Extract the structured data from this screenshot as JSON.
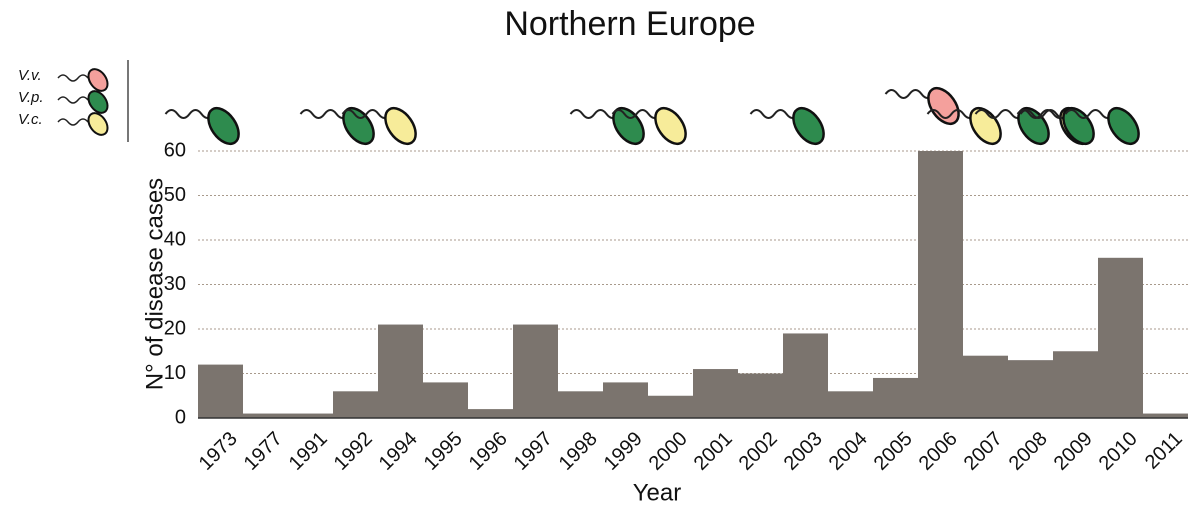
{
  "chart_data": {
    "type": "bar",
    "title": "Northern Europe",
    "xlabel": "Year",
    "ylabel": "N° of disease cases",
    "categories": [
      "1973",
      "1977",
      "1991",
      "1992",
      "1994",
      "1995",
      "1996",
      "1997",
      "1998",
      "1999",
      "2000",
      "2001",
      "2002",
      "2003",
      "2004",
      "2005",
      "2006",
      "2007",
      "2008",
      "2009",
      "2010",
      "2011"
    ],
    "values": [
      12,
      1,
      1,
      6,
      21,
      8,
      2,
      21,
      6,
      8,
      5,
      11,
      10,
      19,
      6,
      9,
      60,
      14,
      13,
      15,
      36,
      1
    ],
    "color": "#7b746e",
    "ylim": [
      0,
      60
    ],
    "yticks": [
      0,
      10,
      20,
      30,
      40,
      50,
      60
    ],
    "grid": true,
    "legend": [
      {
        "name": "V.v.",
        "color": "#f4a09c"
      },
      {
        "name": "V.p.",
        "color": "#2e8b4e"
      },
      {
        "name": "V.c.",
        "color": "#f7ec9a"
      }
    ],
    "species": [
      [
        "V.p."
      ],
      [],
      [],
      [
        "V.p.",
        "V.c."
      ],
      [],
      [],
      [],
      [],
      [],
      [
        "V.p.",
        "V.c."
      ],
      [],
      [],
      [],
      [
        "V.p."
      ],
      [],
      [],
      [
        "V.v.",
        "V.c."
      ],
      [],
      [
        "V.p.",
        "V.c."
      ],
      [
        "V.p."
      ],
      [
        "V.p."
      ],
      []
    ]
  }
}
